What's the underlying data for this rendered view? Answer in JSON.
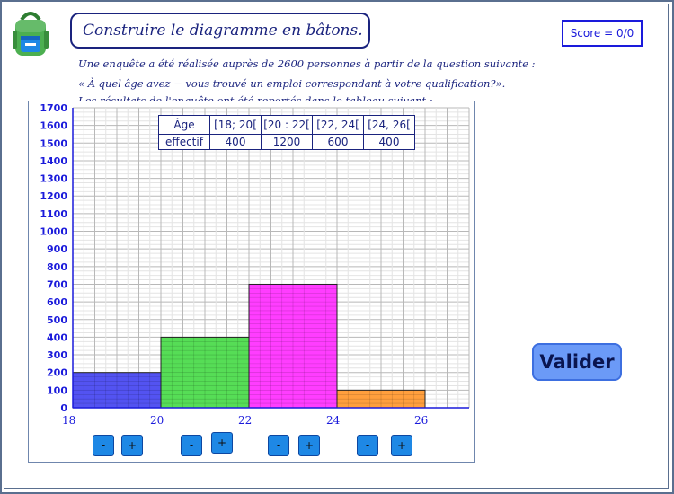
{
  "header": {
    "title": "Construire le diagramme en bâtons.",
    "score": "Score = 0/0"
  },
  "instructions": [
    "Une enquête a été réalisée auprès de 2600 personnes à partir de la question suivante :",
    "« À quel âge avez − vous trouvé un emploi correspondant à votre qualification?».",
    "Les résultats de l'enquête ont été reportés dans le tableau suivant :"
  ],
  "table": {
    "headers": [
      "Âge",
      "[18; 20[",
      "[20 : 22[",
      "[22, 24[",
      "[24, 26["
    ],
    "row": [
      "effectif",
      "400",
      "1200",
      "600",
      "400"
    ]
  },
  "chart_data": {
    "type": "bar",
    "x_ticks": [
      "18",
      "20",
      "22",
      "24",
      "26"
    ],
    "y_ticks": [
      "0",
      "100",
      "200",
      "300",
      "400",
      "500",
      "600",
      "700",
      "800",
      "900",
      "1000",
      "1100",
      "1200",
      "1300",
      "1400",
      "1500",
      "1600",
      "1700"
    ],
    "ylim": [
      0,
      1700
    ],
    "xlim": [
      18,
      27
    ],
    "bars": [
      {
        "from": 18,
        "to": 20,
        "value": 200,
        "color": "#4a4af0"
      },
      {
        "from": 20,
        "to": 22,
        "value": 400,
        "color": "#4ddb4d"
      },
      {
        "from": 22,
        "to": 24,
        "value": 700,
        "color": "#ff33ff"
      },
      {
        "from": 24,
        "to": 26,
        "value": 100,
        "color": "#ff9a33"
      }
    ]
  },
  "controls": [
    {
      "minus": "-",
      "plus": "+"
    },
    {
      "minus": "-",
      "plus": "+"
    },
    {
      "minus": "-",
      "plus": "+"
    },
    {
      "minus": "-",
      "plus": "+"
    }
  ],
  "validate_label": "Valider",
  "colors": {
    "title": "#1a237e",
    "grid": "#c8c8c8",
    "axis": "#1a1adb",
    "button": "#1e88e5"
  }
}
